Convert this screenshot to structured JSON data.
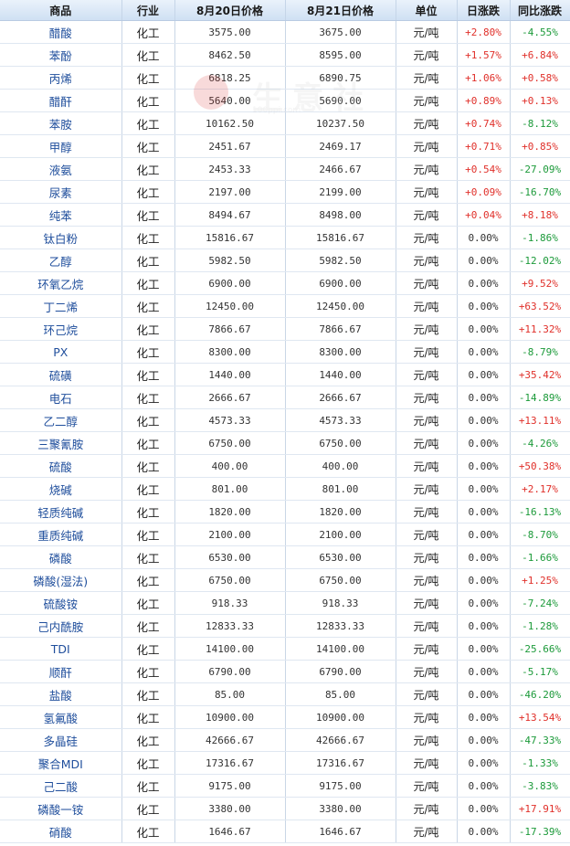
{
  "table": {
    "headers": [
      "商品",
      "行业",
      "8月20日价格",
      "8月21日价格",
      "单位",
      "日涨跌",
      "同比涨跌"
    ],
    "rows": [
      {
        "name": "醋酸",
        "industry": "化工",
        "p20": "3575.00",
        "p21": "3675.00",
        "unit": "元/吨",
        "daily": "+2.80%",
        "yoy": "-4.55%"
      },
      {
        "name": "苯酚",
        "industry": "化工",
        "p20": "8462.50",
        "p21": "8595.00",
        "unit": "元/吨",
        "daily": "+1.57%",
        "yoy": "+6.84%"
      },
      {
        "name": "丙烯",
        "industry": "化工",
        "p20": "6818.25",
        "p21": "6890.75",
        "unit": "元/吨",
        "daily": "+1.06%",
        "yoy": "+0.58%"
      },
      {
        "name": "醋酐",
        "industry": "化工",
        "p20": "5640.00",
        "p21": "5690.00",
        "unit": "元/吨",
        "daily": "+0.89%",
        "yoy": "+0.13%"
      },
      {
        "name": "苯胺",
        "industry": "化工",
        "p20": "10162.50",
        "p21": "10237.50",
        "unit": "元/吨",
        "daily": "+0.74%",
        "yoy": "-8.12%"
      },
      {
        "name": "甲醇",
        "industry": "化工",
        "p20": "2451.67",
        "p21": "2469.17",
        "unit": "元/吨",
        "daily": "+0.71%",
        "yoy": "+0.85%"
      },
      {
        "name": "液氨",
        "industry": "化工",
        "p20": "2453.33",
        "p21": "2466.67",
        "unit": "元/吨",
        "daily": "+0.54%",
        "yoy": "-27.09%"
      },
      {
        "name": "尿素",
        "industry": "化工",
        "p20": "2197.00",
        "p21": "2199.00",
        "unit": "元/吨",
        "daily": "+0.09%",
        "yoy": "-16.70%"
      },
      {
        "name": "纯苯",
        "industry": "化工",
        "p20": "8494.67",
        "p21": "8498.00",
        "unit": "元/吨",
        "daily": "+0.04%",
        "yoy": "+8.18%"
      },
      {
        "name": "钛白粉",
        "industry": "化工",
        "p20": "15816.67",
        "p21": "15816.67",
        "unit": "元/吨",
        "daily": "0.00%",
        "yoy": "-1.86%"
      },
      {
        "name": "乙醇",
        "industry": "化工",
        "p20": "5982.50",
        "p21": "5982.50",
        "unit": "元/吨",
        "daily": "0.00%",
        "yoy": "-12.02%"
      },
      {
        "name": "环氧乙烷",
        "industry": "化工",
        "p20": "6900.00",
        "p21": "6900.00",
        "unit": "元/吨",
        "daily": "0.00%",
        "yoy": "+9.52%"
      },
      {
        "name": "丁二烯",
        "industry": "化工",
        "p20": "12450.00",
        "p21": "12450.00",
        "unit": "元/吨",
        "daily": "0.00%",
        "yoy": "+63.52%"
      },
      {
        "name": "环己烷",
        "industry": "化工",
        "p20": "7866.67",
        "p21": "7866.67",
        "unit": "元/吨",
        "daily": "0.00%",
        "yoy": "+11.32%"
      },
      {
        "name": "PX",
        "industry": "化工",
        "p20": "8300.00",
        "p21": "8300.00",
        "unit": "元/吨",
        "daily": "0.00%",
        "yoy": "-8.79%"
      },
      {
        "name": "硫磺",
        "industry": "化工",
        "p20": "1440.00",
        "p21": "1440.00",
        "unit": "元/吨",
        "daily": "0.00%",
        "yoy": "+35.42%"
      },
      {
        "name": "电石",
        "industry": "化工",
        "p20": "2666.67",
        "p21": "2666.67",
        "unit": "元/吨",
        "daily": "0.00%",
        "yoy": "-14.89%"
      },
      {
        "name": "乙二醇",
        "industry": "化工",
        "p20": "4573.33",
        "p21": "4573.33",
        "unit": "元/吨",
        "daily": "0.00%",
        "yoy": "+13.11%"
      },
      {
        "name": "三聚氰胺",
        "industry": "化工",
        "p20": "6750.00",
        "p21": "6750.00",
        "unit": "元/吨",
        "daily": "0.00%",
        "yoy": "-4.26%"
      },
      {
        "name": "硫酸",
        "industry": "化工",
        "p20": "400.00",
        "p21": "400.00",
        "unit": "元/吨",
        "daily": "0.00%",
        "yoy": "+50.38%"
      },
      {
        "name": "烧碱",
        "industry": "化工",
        "p20": "801.00",
        "p21": "801.00",
        "unit": "元/吨",
        "daily": "0.00%",
        "yoy": "+2.17%"
      },
      {
        "name": "轻质纯碱",
        "industry": "化工",
        "p20": "1820.00",
        "p21": "1820.00",
        "unit": "元/吨",
        "daily": "0.00%",
        "yoy": "-16.13%"
      },
      {
        "name": "重质纯碱",
        "industry": "化工",
        "p20": "2100.00",
        "p21": "2100.00",
        "unit": "元/吨",
        "daily": "0.00%",
        "yoy": "-8.70%"
      },
      {
        "name": "磷酸",
        "industry": "化工",
        "p20": "6530.00",
        "p21": "6530.00",
        "unit": "元/吨",
        "daily": "0.00%",
        "yoy": "-1.66%"
      },
      {
        "name": "磷酸(湿法)",
        "industry": "化工",
        "p20": "6750.00",
        "p21": "6750.00",
        "unit": "元/吨",
        "daily": "0.00%",
        "yoy": "+1.25%"
      },
      {
        "name": "硫酸铵",
        "industry": "化工",
        "p20": "918.33",
        "p21": "918.33",
        "unit": "元/吨",
        "daily": "0.00%",
        "yoy": "-7.24%"
      },
      {
        "name": "己内酰胺",
        "industry": "化工",
        "p20": "12833.33",
        "p21": "12833.33",
        "unit": "元/吨",
        "daily": "0.00%",
        "yoy": "-1.28%"
      },
      {
        "name": "TDI",
        "industry": "化工",
        "p20": "14100.00",
        "p21": "14100.00",
        "unit": "元/吨",
        "daily": "0.00%",
        "yoy": "-25.66%"
      },
      {
        "name": "顺酐",
        "industry": "化工",
        "p20": "6790.00",
        "p21": "6790.00",
        "unit": "元/吨",
        "daily": "0.00%",
        "yoy": "-5.17%"
      },
      {
        "name": "盐酸",
        "industry": "化工",
        "p20": "85.00",
        "p21": "85.00",
        "unit": "元/吨",
        "daily": "0.00%",
        "yoy": "-46.20%"
      },
      {
        "name": "氢氟酸",
        "industry": "化工",
        "p20": "10900.00",
        "p21": "10900.00",
        "unit": "元/吨",
        "daily": "0.00%",
        "yoy": "+13.54%"
      },
      {
        "name": "多晶硅",
        "industry": "化工",
        "p20": "42666.67",
        "p21": "42666.67",
        "unit": "元/吨",
        "daily": "0.00%",
        "yoy": "-47.33%"
      },
      {
        "name": "聚合MDI",
        "industry": "化工",
        "p20": "17316.67",
        "p21": "17316.67",
        "unit": "元/吨",
        "daily": "0.00%",
        "yoy": "-1.33%"
      },
      {
        "name": "己二酸",
        "industry": "化工",
        "p20": "9175.00",
        "p21": "9175.00",
        "unit": "元/吨",
        "daily": "0.00%",
        "yoy": "-3.83%"
      },
      {
        "name": "磷酸一铵",
        "industry": "化工",
        "p20": "3380.00",
        "p21": "3380.00",
        "unit": "元/吨",
        "daily": "0.00%",
        "yoy": "+17.91%"
      },
      {
        "name": "硝酸",
        "industry": "化工",
        "p20": "1646.67",
        "p21": "1646.67",
        "unit": "元/吨",
        "daily": "0.00%",
        "yoy": "-17.39%"
      }
    ]
  },
  "watermark": {
    "text": "生意社",
    "url": "100ppi.com"
  },
  "colors": {
    "up": "#e0302a",
    "down": "#1c9a3a",
    "name_link": "#1f4e9c",
    "header_bg": "#cfe0f3"
  }
}
